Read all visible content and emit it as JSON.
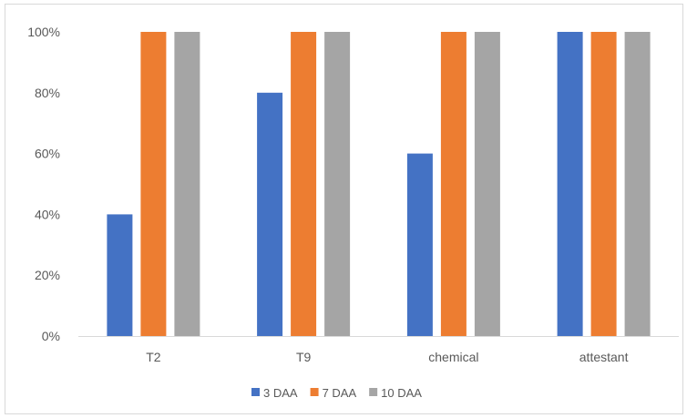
{
  "chart_data": {
    "type": "bar",
    "title": "",
    "xlabel": "",
    "ylabel": "",
    "categories": [
      "T2",
      "T9",
      "chemical",
      "attestant"
    ],
    "series": [
      {
        "name": "3 DAA",
        "color": "#4472c4",
        "values": [
          40,
          80,
          60,
          100
        ]
      },
      {
        "name": "7 DAA",
        "color": "#ed7d31",
        "values": [
          100,
          100,
          100,
          100
        ]
      },
      {
        "name": "10 DAA",
        "color": "#a5a5a5",
        "values": [
          100,
          100,
          100,
          100
        ]
      }
    ],
    "ylim": [
      0,
      100
    ],
    "yticks": [
      "0%",
      "20%",
      "40%",
      "60%",
      "80%",
      "100%"
    ],
    "grid": false,
    "legend_position": "bottom"
  }
}
